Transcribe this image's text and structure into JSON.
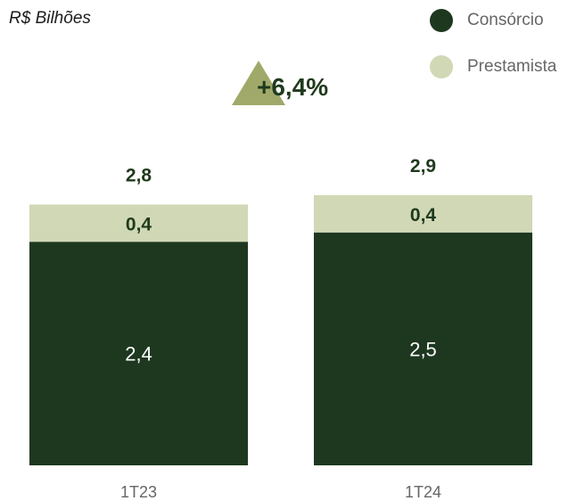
{
  "chart_data": {
    "type": "bar",
    "stacked": true,
    "unit_label": "R$ Bilhões",
    "categories": [
      "1T23",
      "1T24"
    ],
    "series": [
      {
        "name": "Consórcio",
        "values": [
          2.4,
          2.5
        ],
        "value_labels": [
          "2,4",
          "2,5"
        ],
        "color": "#1e3820"
      },
      {
        "name": "Prestamista",
        "values": [
          0.4,
          0.4
        ],
        "value_labels": [
          "0,4",
          "0,4"
        ],
        "color": "#d0d8b6"
      }
    ],
    "totals": [
      2.8,
      2.9
    ],
    "total_labels": [
      "2,8",
      "2,9"
    ],
    "growth_label": "+6,4%",
    "growth_icon": "triangle-up",
    "growth_color": "#a0a96a",
    "legend_position": "top-right",
    "grid": false
  }
}
